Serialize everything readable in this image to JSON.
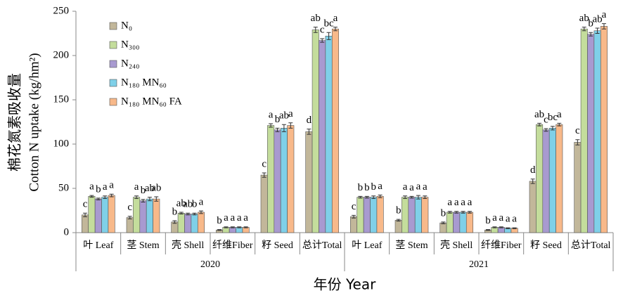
{
  "chart_data": {
    "type": "bar",
    "y_title_lines": [
      "棉花氮素吸收量",
      "Cotton N uptake (kg/hm²)"
    ],
    "x_title": "年份 Year",
    "categories": [
      "叶 Leaf",
      "茎 Stem",
      "壳 Shell",
      "纤维Fiber",
      "籽 Seed",
      "总计Total",
      "叶 Leaf",
      "茎 Stem",
      "壳 Shell",
      "纤维Fiber",
      "籽 Seed",
      "总计Total"
    ],
    "x_groups": [
      "2020",
      "2021"
    ],
    "ylim": [
      0,
      250
    ],
    "yticks": [
      0,
      50,
      100,
      150,
      200,
      250
    ],
    "series": [
      {
        "name": "N₀",
        "color": "#c2b79a",
        "values": [
          20,
          17,
          12,
          3,
          65,
          114,
          18,
          14,
          11,
          3,
          58,
          102
        ],
        "errors": [
          2,
          1.5,
          1.5,
          0.5,
          2.5,
          3,
          1.5,
          1,
          1,
          0.5,
          2.5,
          3
        ],
        "labels": [
          "c",
          "c",
          "b",
          "b",
          "c",
          "d",
          "c",
          "b",
          "b",
          "b",
          "d",
          "c"
        ]
      },
      {
        "name": "N₃₀₀",
        "color": "#c4dd9c",
        "values": [
          41,
          40,
          22,
          6,
          121,
          229,
          40,
          40,
          23,
          6,
          122,
          230
        ],
        "errors": [
          1,
          1.5,
          1,
          0.5,
          2,
          3,
          1,
          1.5,
          1,
          0.5,
          1.5,
          2
        ],
        "labels": [
          "a",
          "a",
          "ab",
          "a",
          "a",
          "ab",
          "b",
          "a",
          "a",
          "a",
          "ab",
          "ab"
        ]
      },
      {
        "name": "N₂₄₀",
        "color": "#a89ad0",
        "values": [
          38,
          36,
          21,
          6,
          116,
          217,
          40,
          40,
          23,
          6,
          116,
          224
        ],
        "errors": [
          1,
          1.5,
          1,
          0.5,
          2,
          2,
          1,
          1,
          1,
          0.5,
          1.5,
          2
        ],
        "labels": [
          "b",
          "b",
          "ab",
          "a",
          "b",
          "c",
          "b",
          "a",
          "a",
          "a",
          "c",
          "b"
        ]
      },
      {
        "name": "N₁₈₀ MN₆₀",
        "color": "#7fd0e8",
        "values": [
          40,
          38,
          21,
          6,
          118,
          222,
          40,
          40,
          23,
          5,
          118,
          228
        ],
        "errors": [
          1.5,
          2,
          1,
          0.5,
          4,
          4,
          1.5,
          2,
          1,
          0.5,
          2,
          3
        ],
        "labels": [
          "a",
          "ab",
          "b",
          "a",
          "ab",
          "bc",
          "b",
          "a",
          "a",
          "a",
          "bc",
          "ab"
        ]
      },
      {
        "name": "N₁₈₀ MN₆₀ FA",
        "color": "#f8b98a",
        "values": [
          42,
          38,
          23,
          6,
          121,
          230,
          41,
          40,
          23,
          5,
          122,
          233
        ],
        "errors": [
          1.5,
          2.5,
          1.5,
          0.5,
          3,
          2,
          1.5,
          1.5,
          1,
          0.5,
          1.5,
          3
        ],
        "labels": [
          "a",
          "ab",
          "a",
          "a",
          "a",
          "a",
          "a",
          "a",
          "a",
          "a",
          "a",
          "a"
        ]
      }
    ]
  }
}
